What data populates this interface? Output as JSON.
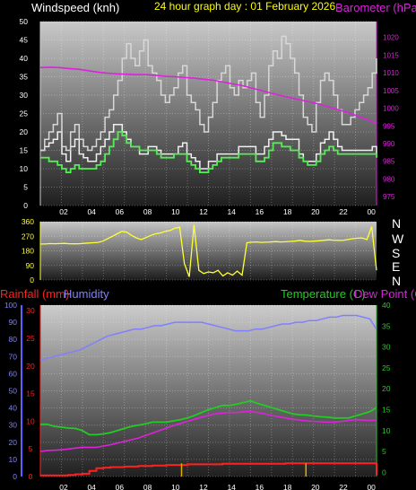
{
  "colors": {
    "wind": "#f0f0f0",
    "gust": "#d8d8d8",
    "avg": "#55ee55",
    "baro": "#dd22dd",
    "dir": "#ffff33",
    "rain": "#ff2020",
    "humidity": "#8080ff",
    "temp": "#22cc22",
    "dew": "#dd22dd",
    "title": "#ffff00"
  },
  "panels": {
    "top": {
      "title": "24 hour graph day : 01 February 2026",
      "left_label": "Windspeed (knh)",
      "right_label": "Barometer (hPa)"
    },
    "mid": {
      "compass": [
        "N",
        "W",
        "S",
        "E",
        "N"
      ]
    },
    "bottom": {
      "rain_label": "Rainfall (mm)",
      "hum_label": "Humidity",
      "temp_label": "Temperature (C)",
      "dew_label": "Dew Point (C)"
    }
  },
  "chart_data": [
    {
      "type": "line",
      "name": "wind",
      "x_ticks": [
        "02",
        "04",
        "06",
        "08",
        "10",
        "12",
        "14",
        "16",
        "18",
        "20",
        "22",
        "00"
      ],
      "yleft_ticks": [
        0,
        5,
        10,
        15,
        20,
        25,
        30,
        35,
        40,
        45,
        50
      ],
      "yright_ticks": [
        975,
        980,
        985,
        990,
        995,
        1000,
        1005,
        1010,
        1015,
        1020
      ],
      "ylim": [
        0,
        50
      ],
      "ylim_right": [
        972.5,
        1024.5
      ],
      "series": [
        {
          "key": "wind",
          "values": [
            15,
            16,
            17,
            18,
            20,
            14,
            12,
            16,
            18,
            14,
            13,
            12,
            12,
            14,
            16,
            18,
            20,
            22,
            22,
            20,
            18,
            16,
            16,
            14,
            14,
            16,
            16,
            15,
            14,
            14,
            14,
            14,
            16,
            17,
            14,
            13,
            12,
            10,
            10,
            12,
            12,
            14,
            14,
            14,
            14,
            14,
            16,
            16,
            16,
            16,
            14,
            14,
            16,
            18,
            20,
            20,
            19,
            18,
            18,
            18,
            14,
            12,
            12,
            12,
            14,
            17,
            18,
            20,
            18,
            16,
            15,
            15,
            15,
            15,
            15,
            15,
            15,
            16,
            14
          ]
        },
        {
          "key": "gust",
          "values": [
            15,
            18,
            20,
            22,
            25,
            16,
            15,
            20,
            22,
            18,
            16,
            15,
            16,
            18,
            20,
            24,
            26,
            30,
            34,
            40,
            44,
            40,
            38,
            42,
            45,
            38,
            36,
            34,
            30,
            28,
            30,
            32,
            36,
            38,
            30,
            28,
            26,
            22,
            20,
            24,
            28,
            34,
            36,
            38,
            32,
            30,
            34,
            32,
            34,
            36,
            28,
            24,
            30,
            38,
            42,
            40,
            46,
            44,
            40,
            36,
            30,
            24,
            22,
            20,
            28,
            34,
            36,
            34,
            30,
            26,
            22,
            22,
            24,
            26,
            28,
            30,
            32,
            36,
            40
          ]
        },
        {
          "key": "avg",
          "values": [
            13,
            13,
            12,
            12,
            11,
            10,
            9,
            10,
            11,
            10,
            10,
            10,
            10,
            11,
            12,
            14,
            16,
            18,
            20,
            19,
            17,
            16,
            16,
            15,
            15,
            15,
            15,
            14,
            13,
            13,
            13,
            14,
            14,
            14,
            12,
            11,
            10,
            9,
            9,
            10,
            11,
            12,
            13,
            13,
            13,
            13,
            14,
            14,
            14,
            14,
            12,
            12,
            13,
            15,
            17,
            17,
            16,
            16,
            15,
            15,
            13,
            12,
            11,
            11,
            12,
            14,
            15,
            16,
            15,
            14,
            14,
            14,
            14,
            14,
            14,
            14,
            14,
            14,
            13
          ]
        },
        {
          "key": "baro",
          "axis": "right",
          "values": [
            1011.5,
            1011.6,
            1011.5,
            1011.2,
            1011,
            1010.6,
            1010.2,
            1009.9,
            1009.7,
            1009.6,
            1009.5,
            1009.5,
            1009.3,
            1009,
            1008.9,
            1008.7,
            1008.5,
            1008.2,
            1007.9,
            1007.4,
            1006.9,
            1006.4,
            1005.7,
            1005,
            1004.3,
            1003.6,
            1003,
            1002.4,
            1001.8,
            1001.2,
            1000.4,
            999.6,
            998.8,
            997.8,
            996.8,
            995.7
          ]
        }
      ]
    },
    {
      "type": "line",
      "name": "direction",
      "yleft_ticks": [
        0,
        90,
        180,
        270,
        360
      ],
      "ylim": [
        0,
        360
      ],
      "series": [
        {
          "key": "dir",
          "values": [
            222,
            222,
            225,
            224,
            225,
            226,
            224,
            223,
            224,
            226,
            228,
            230,
            232,
            240,
            255,
            270,
            285,
            300,
            295,
            275,
            260,
            250,
            262,
            275,
            285,
            290,
            300,
            305,
            320,
            325,
            100,
            20,
            340,
            60,
            40,
            50,
            45,
            60,
            25,
            45,
            30,
            55,
            30,
            230,
            233,
            235,
            232,
            233,
            235,
            237,
            235,
            236,
            238,
            240,
            245,
            240,
            238,
            240,
            242,
            245,
            248,
            246,
            245,
            244,
            250,
            255,
            258,
            260,
            250,
            330,
            60
          ]
        }
      ]
    },
    {
      "type": "line",
      "name": "humidity-temperature",
      "yleft_ticks": [
        0,
        10,
        20,
        30,
        40,
        50,
        60,
        70,
        80,
        90,
        100
      ],
      "yrain_ticks": [
        0,
        5,
        10,
        15,
        20,
        25,
        30
      ],
      "yright_ticks": [
        0,
        5,
        10,
        15,
        20,
        25,
        30,
        35,
        40
      ],
      "ylim": [
        0,
        100
      ],
      "ylim_right": [
        -1,
        40
      ],
      "series": [
        {
          "key": "humidity",
          "values": [
            68,
            69,
            70,
            71,
            72,
            73,
            74,
            76,
            78,
            80,
            82,
            83,
            84,
            85,
            86,
            86,
            87,
            88,
            88,
            89,
            90,
            90,
            90,
            90,
            90,
            89,
            88,
            87,
            86,
            85,
            85,
            85,
            86,
            86,
            87,
            88,
            89,
            89,
            90,
            90,
            91,
            91,
            92,
            93,
            93,
            94,
            94,
            94,
            93,
            92,
            86
          ]
        },
        {
          "key": "temp",
          "axis": "right",
          "values": [
            11.5,
            11.5,
            11,
            10.8,
            10.6,
            10.5,
            10,
            9,
            9,
            9.2,
            9.5,
            10,
            10.5,
            11,
            11.3,
            11.6,
            12,
            12,
            12,
            12.3,
            12.6,
            13,
            13.6,
            14.3,
            15,
            15.5,
            16,
            16,
            16.3,
            16.7,
            17.1,
            16.5,
            16,
            15.5,
            15,
            14.5,
            14,
            13.8,
            13.7,
            13.5,
            13.3,
            13.2,
            13,
            13,
            13,
            13.5,
            14,
            14.5,
            15.5
          ]
        },
        {
          "key": "dew",
          "axis": "right",
          "values": [
            5,
            5.2,
            5.3,
            5.4,
            5.6,
            5.8,
            6,
            6,
            6,
            6.3,
            6.6,
            7,
            7.4,
            7.8,
            8.2,
            8.8,
            9.4,
            10,
            10.6,
            11.2,
            11.7,
            12.2,
            12.7,
            13.2,
            13.6,
            14,
            14.2,
            14.3,
            14.3,
            14.5,
            14.6,
            14.3,
            14,
            13.6,
            13.3,
            13,
            12.7,
            12.5,
            12.3,
            12.2,
            12.1,
            12,
            12,
            12.2,
            12.4,
            12.6,
            12.5,
            12.4,
            12.5
          ]
        },
        {
          "key": "rain",
          "axis": "rain",
          "values": [
            0.2,
            0.2,
            0.2,
            0.2,
            0.3,
            0.4,
            0.5,
            1,
            1.5,
            1.6,
            1.7,
            1.7,
            1.8,
            1.8,
            1.9,
            1.9,
            2,
            2,
            2.1,
            2.1,
            2.1,
            2.2,
            2.2,
            2.2,
            2.2,
            2.2,
            2.3,
            2.3,
            2.3,
            2.3,
            2.3,
            2.3,
            2.3,
            2.3,
            2.3,
            2.4,
            2.4,
            2.4,
            2.4,
            2.4,
            2.4,
            2.4,
            2.4,
            2.4,
            2.4,
            2.4,
            2.4,
            2.4,
            0.3
          ]
        },
        {
          "key": "rain_rate",
          "axis": "rain",
          "points": [
            [
              0.42,
              2.4
            ],
            [
              0.79,
              2.4
            ]
          ]
        }
      ]
    }
  ]
}
